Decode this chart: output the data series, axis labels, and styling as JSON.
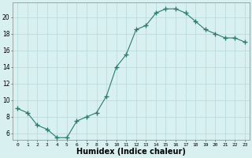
{
  "x": [
    0,
    1,
    2,
    3,
    4,
    5,
    6,
    7,
    8,
    9,
    10,
    11,
    12,
    13,
    14,
    15,
    16,
    17,
    18,
    19,
    20,
    21,
    22,
    23
  ],
  "y": [
    9.0,
    8.5,
    7.0,
    6.5,
    5.5,
    5.5,
    7.5,
    8.0,
    8.5,
    10.5,
    14.0,
    15.5,
    18.5,
    19.0,
    20.5,
    21.0,
    21.0,
    20.5,
    19.5,
    18.5,
    18.0,
    17.5,
    17.5,
    17.0
  ],
  "line_color": "#2d7a6e",
  "marker": "+",
  "marker_size": 4,
  "marker_linewidth": 1.0,
  "bg_color": "#d8f0f0",
  "grid_color": "#b8d8d8",
  "xlabel": "Humidex (Indice chaleur)",
  "xlabel_fontsize": 7,
  "xtick_fontsize": 4.5,
  "ytick_fontsize": 5.5,
  "ylabel_ticks": [
    6,
    8,
    10,
    12,
    14,
    16,
    18,
    20
  ],
  "ylim": [
    5.2,
    21.8
  ],
  "xlim": [
    -0.5,
    23.5
  ],
  "xtick_labels": [
    "0",
    "1",
    "2",
    "3",
    "4",
    "5",
    "6",
    "7",
    "8",
    "9",
    "10",
    "11",
    "12",
    "13",
    "14",
    "15",
    "16",
    "17",
    "18",
    "19",
    "20",
    "21",
    "22",
    "23"
  ]
}
